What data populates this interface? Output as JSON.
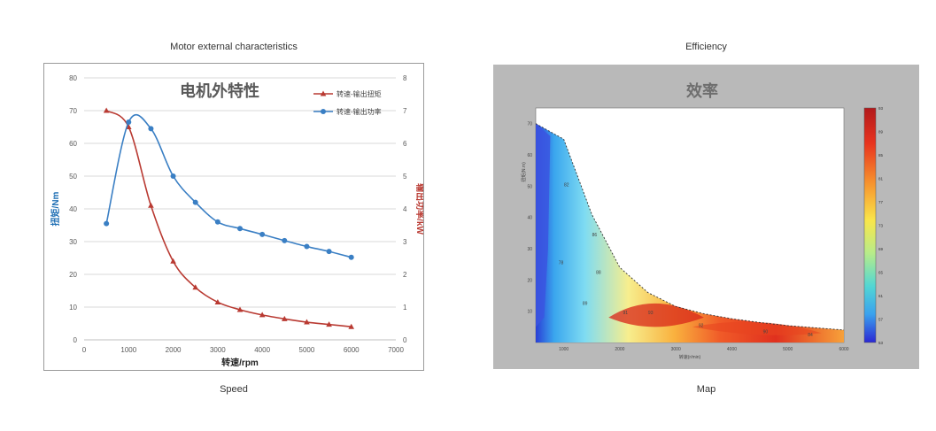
{
  "captions": {
    "left_top": "Motor external characteristics",
    "right_top": "Efficiency",
    "left_bottom": "Speed",
    "right_bottom": "Map"
  },
  "chart_data": [
    {
      "type": "line",
      "title": "电机外特性",
      "xlabel": "转速/rpm",
      "ylabel": "扭矩/Nm",
      "y2label": "输出功率/kW",
      "xlim": [
        0,
        7000
      ],
      "ylim": [
        0,
        80
      ],
      "y2lim": [
        0,
        8
      ],
      "xticks": [
        0,
        1000,
        2000,
        3000,
        4000,
        5000,
        6000,
        7000
      ],
      "yticks": [
        0,
        10,
        20,
        30,
        40,
        50,
        60,
        70,
        80
      ],
      "y2ticks": [
        0,
        1,
        2,
        3,
        4,
        5,
        6,
        7,
        8
      ],
      "grid": true,
      "legend": "top-right",
      "series": [
        {
          "name": "转速-输出扭矩",
          "axis": "left",
          "color": "#b93a32",
          "marker": "triangle",
          "x": [
            500,
            1000,
            1500,
            2000,
            2500,
            3000,
            3500,
            4000,
            4500,
            5000,
            5500,
            6000
          ],
          "y": [
            70,
            65,
            41,
            24,
            16,
            11.5,
            9.2,
            7.6,
            6.4,
            5.4,
            4.7,
            4.0
          ]
        },
        {
          "name": "转速-输出功率",
          "axis": "right",
          "color": "#3a7fc4",
          "marker": "circle",
          "x": [
            500,
            1000,
            1500,
            2000,
            2500,
            3000,
            3500,
            4000,
            4500,
            5000,
            5500,
            6000
          ],
          "y": [
            3.55,
            6.65,
            6.45,
            5.0,
            4.2,
            3.6,
            3.4,
            3.22,
            3.03,
            2.85,
            2.7,
            2.52
          ]
        }
      ]
    },
    {
      "type": "heatmap",
      "title": "效率",
      "xlabel": "转速(r/min)",
      "ylabel": "扭矩(N.m)",
      "xlim": [
        500,
        6000
      ],
      "ylim": [
        0,
        75
      ],
      "xticks": [
        1000,
        2000,
        3000,
        4000,
        5000,
        6000
      ],
      "yticks": [
        10,
        20,
        30,
        40,
        50,
        60,
        70
      ],
      "colorbar_ticks": [
        93,
        89,
        85,
        81,
        77,
        73,
        69,
        65,
        61,
        57,
        53
      ],
      "envelope": {
        "x": [
          500,
          1000,
          1500,
          2000,
          2500,
          3000,
          3500,
          4000,
          4500,
          5000,
          5500,
          6000
        ],
        "y": [
          70,
          65,
          41,
          24,
          16,
          11.5,
          9.2,
          7.6,
          6.4,
          5.4,
          4.7,
          4.0
        ]
      },
      "contour_labels": [
        {
          "text": "82",
          "x": 1050,
          "y": 50
        },
        {
          "text": "86",
          "x": 1550,
          "y": 34
        },
        {
          "text": "88",
          "x": 1620,
          "y": 22
        },
        {
          "text": "89",
          "x": 1380,
          "y": 12
        },
        {
          "text": "91",
          "x": 2100,
          "y": 9
        },
        {
          "text": "93",
          "x": 2550,
          "y": 9
        },
        {
          "text": "92",
          "x": 3450,
          "y": 5
        },
        {
          "text": "90",
          "x": 4600,
          "y": 3
        },
        {
          "text": "84",
          "x": 5400,
          "y": 2
        },
        {
          "text": "78",
          "x": 950,
          "y": 25
        }
      ]
    }
  ]
}
